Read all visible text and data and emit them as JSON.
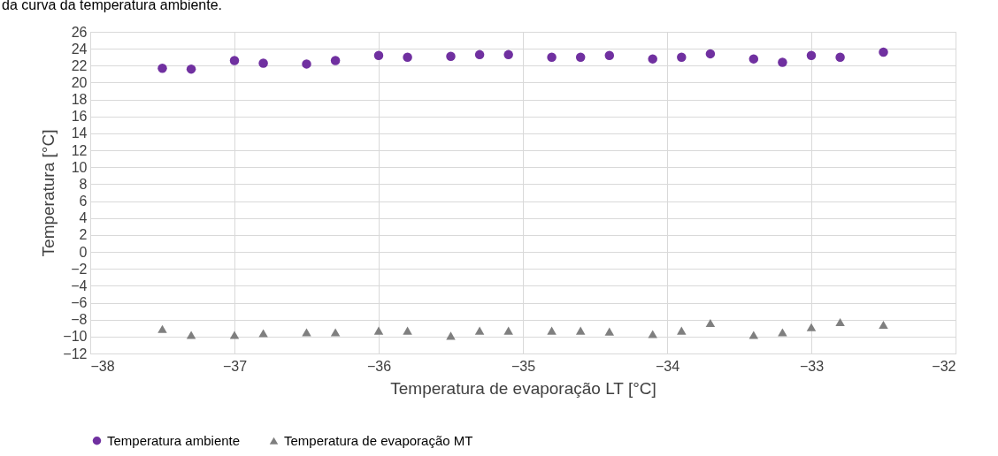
{
  "chart_data": {
    "type": "scatter",
    "annotations": [
      "da curva da temperatura ambiente."
    ],
    "xlabel": "Temperatura de evaporação LT [°C]",
    "ylabel": "Temperatura [°C]",
    "xlim": [
      -38,
      -32
    ],
    "xticks": [
      -38,
      -37,
      -36,
      -35,
      -34,
      -33,
      -32
    ],
    "ylim": [
      -12,
      26
    ],
    "yticks": [
      -12,
      -10,
      -8,
      -6,
      -4,
      -2,
      0,
      2,
      4,
      6,
      8,
      10,
      12,
      14,
      16,
      18,
      20,
      22,
      24,
      26
    ],
    "grid": true,
    "legend": "bottom",
    "x": [
      -37.5,
      -37.3,
      -37.0,
      -36.8,
      -36.5,
      -36.3,
      -36.0,
      -35.8,
      -35.5,
      -35.3,
      -35.1,
      -34.8,
      -34.6,
      -34.4,
      -34.1,
      -33.9,
      -33.7,
      -33.4,
      -33.2,
      -33.0,
      -32.8,
      -32.5
    ],
    "series": [
      {
        "name": "Temperatura ambiente",
        "color": "#7030a0",
        "marker": "circle",
        "values": [
          21.7,
          21.6,
          22.6,
          22.3,
          22.2,
          22.6,
          23.2,
          23.0,
          23.1,
          23.3,
          23.3,
          23.0,
          23.0,
          23.2,
          22.8,
          23.0,
          23.4,
          22.8,
          22.4,
          23.2,
          23.0,
          23.6
        ]
      },
      {
        "name": "Temperatura de evaporação MT",
        "color": "#7f7f7f",
        "marker": "triangle",
        "values": [
          -9.1,
          -9.8,
          -9.8,
          -9.6,
          -9.5,
          -9.5,
          -9.3,
          -9.3,
          -9.9,
          -9.3,
          -9.3,
          -9.3,
          -9.3,
          -9.4,
          -9.7,
          -9.3,
          -8.4,
          -9.8,
          -9.5,
          -8.9,
          -8.3,
          -8.6
        ]
      }
    ]
  }
}
